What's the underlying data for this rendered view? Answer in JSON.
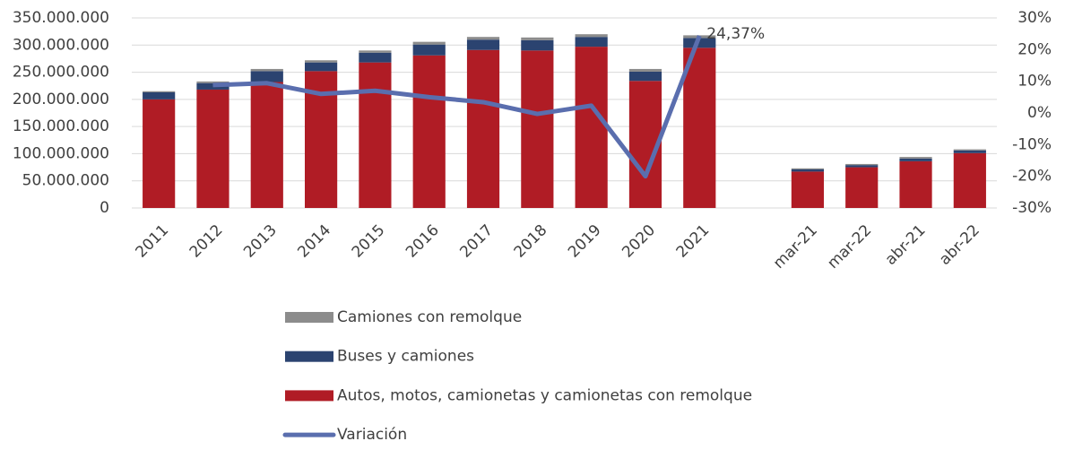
{
  "chart_data": {
    "type": "bar",
    "categories": [
      "2011",
      "2012",
      "2013",
      "2014",
      "2015",
      "2016",
      "2017",
      "2018",
      "2019",
      "2020",
      "2021",
      null,
      "mar-21",
      "mar-22",
      "abr-21",
      "abr-22"
    ],
    "series": [
      {
        "name": "Autos, motos, camionetas y camionetas con remolque",
        "color": "#b01c25",
        "values": [
          200000000,
          218000000,
          232000000,
          252000000,
          268000000,
          281000000,
          291000000,
          290000000,
          297000000,
          234000000,
          295000000,
          null,
          67000000,
          75000000,
          86000000,
          101000000
        ]
      },
      {
        "name": "Buses y camiones",
        "color": "#2b4370",
        "values": [
          13000000,
          12000000,
          20000000,
          16000000,
          18000000,
          20000000,
          19000000,
          19000000,
          18000000,
          17000000,
          18000000,
          null,
          4000000,
          4000000,
          5000000,
          5000000
        ]
      },
      {
        "name": "Camiones con remolque",
        "color": "#8c8c8c",
        "values": [
          2000000,
          3000000,
          4000000,
          4000000,
          4000000,
          5000000,
          5000000,
          5000000,
          5000000,
          5000000,
          5000000,
          null,
          2000000,
          2000000,
          3000000,
          2000000
        ]
      },
      {
        "name": "Variación",
        "type": "line",
        "axis": "y2",
        "color": "#5a6eae",
        "values": [
          null,
          8.8,
          9.4,
          6,
          7,
          5,
          3.4,
          -0.3,
          2.3,
          -20,
          24.37,
          null,
          null,
          null,
          null,
          null
        ],
        "value_labels": [
          null,
          null,
          null,
          null,
          null,
          null,
          null,
          null,
          null,
          null,
          "24,37%",
          null,
          null,
          null,
          null,
          null
        ]
      }
    ],
    "ylim": [
      0,
      350000000
    ],
    "yticks": [
      0,
      {
        "value": 50000000,
        "label": "50.000.000"
      },
      {
        "value": 100000000,
        "label": "100.000.000"
      },
      {
        "value": 150000000,
        "label": "150.000.000"
      },
      {
        "value": 200000000,
        "label": "200.000.000"
      },
      {
        "value": 250000000,
        "label": "250.000.000"
      },
      {
        "value": 300000000,
        "label": "300.000.000"
      },
      {
        "value": 350000000,
        "label": "350.000.000"
      }
    ],
    "y2lim": [
      -30,
      30
    ],
    "y2ticks": [
      {
        "value": -30,
        "label": "-30%"
      },
      {
        "value": -20,
        "label": "-20%"
      },
      {
        "value": -10,
        "label": "-10%"
      },
      {
        "value": 0,
        "label": "0%"
      },
      {
        "value": 10,
        "label": "10%"
      },
      {
        "value": 20,
        "label": "20%"
      },
      {
        "value": 30,
        "label": "30%"
      }
    ],
    "grid": true,
    "legend": "bottom"
  }
}
